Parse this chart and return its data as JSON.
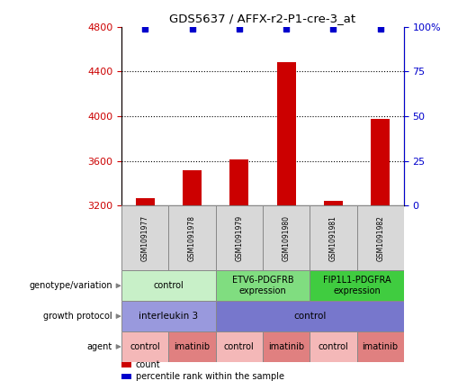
{
  "title": "GDS5637 / AFFX-r2-P1-cre-3_at",
  "samples": [
    "GSM1091977",
    "GSM1091978",
    "GSM1091979",
    "GSM1091980",
    "GSM1091981",
    "GSM1091982"
  ],
  "count_values": [
    3270,
    3520,
    3610,
    4480,
    3240,
    3980
  ],
  "percentile_values": [
    99,
    99,
    99,
    99,
    99,
    99
  ],
  "ylim_left": [
    3200,
    4800
  ],
  "ylim_right": [
    0,
    100
  ],
  "yticks_left": [
    3200,
    3600,
    4000,
    4400,
    4800
  ],
  "yticks_right": [
    0,
    25,
    50,
    75,
    100
  ],
  "ytick_labels_right": [
    "0",
    "25",
    "50",
    "75",
    "100%"
  ],
  "bar_color": "#cc0000",
  "scatter_color": "#0000cc",
  "genotype_groups": [
    {
      "label": "control",
      "start": 0,
      "end": 2,
      "color": "#c8f0c8",
      "bold_border": false
    },
    {
      "label": "ETV6-PDGFRB\nexpression",
      "start": 2,
      "end": 4,
      "color": "#80dd80",
      "bold_border": true
    },
    {
      "label": "FIP1L1-PDGFRA\nexpression",
      "start": 4,
      "end": 6,
      "color": "#40cc40",
      "bold_border": true
    }
  ],
  "growth_protocol_groups": [
    {
      "label": "interleukin 3",
      "start": 0,
      "end": 2,
      "color": "#9999dd"
    },
    {
      "label": "control",
      "start": 2,
      "end": 6,
      "color": "#7777cc"
    }
  ],
  "agent_groups": [
    {
      "label": "control",
      "start": 0,
      "end": 1,
      "color": "#f4b8b8"
    },
    {
      "label": "imatinib",
      "start": 1,
      "end": 2,
      "color": "#e08080"
    },
    {
      "label": "control",
      "start": 2,
      "end": 3,
      "color": "#f4b8b8"
    },
    {
      "label": "imatinib",
      "start": 3,
      "end": 4,
      "color": "#e08080"
    },
    {
      "label": "control",
      "start": 4,
      "end": 5,
      "color": "#f4b8b8"
    },
    {
      "label": "imatinib",
      "start": 5,
      "end": 6,
      "color": "#e08080"
    }
  ],
  "row_labels": [
    "genotype/variation",
    "growth protocol",
    "agent"
  ],
  "legend_count_color": "#cc0000",
  "legend_percentile_color": "#0000cc",
  "background_color": "#ffffff",
  "axis_left_color": "#cc0000",
  "axis_right_color": "#0000cc",
  "sample_box_color": "#d8d8d8"
}
